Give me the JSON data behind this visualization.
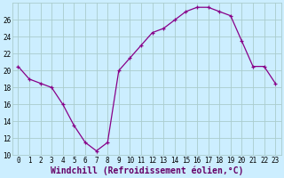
{
  "x": [
    0,
    1,
    2,
    3,
    4,
    5,
    6,
    7,
    8,
    9,
    10,
    11,
    12,
    13,
    14,
    15,
    16,
    17,
    18,
    19,
    20,
    21,
    22,
    23
  ],
  "y": [
    20.5,
    19.0,
    18.5,
    18.0,
    16.0,
    13.5,
    11.5,
    10.5,
    11.5,
    20.0,
    21.5,
    23.0,
    24.5,
    25.0,
    26.0,
    27.0,
    27.5,
    27.5,
    27.0,
    26.5,
    23.5,
    20.5,
    20.5,
    18.5
  ],
  "line_color": "#880088",
  "marker": "+",
  "marker_size": 3,
  "bg_color": "#cceeff",
  "grid_color": "#aacccc",
  "xlabel": "Windchill (Refroidissement éolien,°C)",
  "xlabel_fontsize": 7,
  "tick_fontsize": 5.5,
  "ylim": [
    10,
    28
  ],
  "xlim": [
    -0.5,
    23.5
  ],
  "yticks": [
    10,
    12,
    14,
    16,
    18,
    20,
    22,
    24,
    26
  ],
  "xticks": [
    0,
    1,
    2,
    3,
    4,
    5,
    6,
    7,
    8,
    9,
    10,
    11,
    12,
    13,
    14,
    15,
    16,
    17,
    18,
    19,
    20,
    21,
    22,
    23
  ]
}
